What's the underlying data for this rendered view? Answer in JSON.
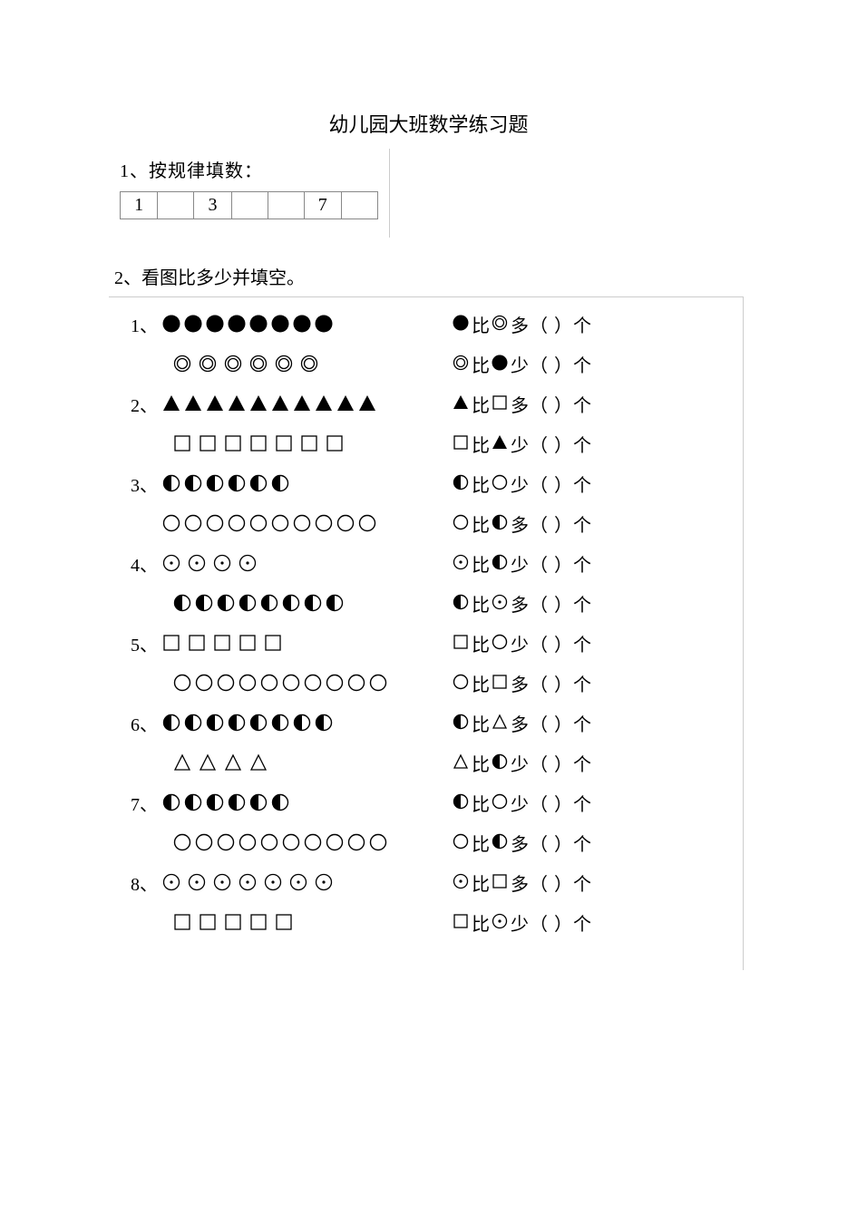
{
  "title": "幼儿园大班数学练习题",
  "q1": {
    "label": "1、按规律填数：",
    "cells": [
      "1",
      "",
      "3",
      "",
      "",
      "7",
      ""
    ]
  },
  "q2": {
    "label": "2、看图比多少并填空。",
    "problems": [
      {
        "num": "1、",
        "rowA": {
          "shape": "filled-circle",
          "count": 8,
          "gap": "tight"
        },
        "rowB": {
          "shape": "double-circle",
          "count": 6,
          "gap": "wide",
          "indent": true
        },
        "stmtA": {
          "s1": "filled-circle",
          "mid": "比",
          "s2": "double-circle",
          "tail": "多（ ）个"
        },
        "stmtB": {
          "s1": "double-circle",
          "mid": "比",
          "s2": "filled-circle",
          "tail": "少（ ）个"
        }
      },
      {
        "num": "2、",
        "rowA": {
          "shape": "filled-triangle",
          "count": 10,
          "gap": "tight"
        },
        "rowB": {
          "shape": "empty-square",
          "count": 7,
          "gap": "wide",
          "indent": true
        },
        "stmtA": {
          "s1": "filled-triangle",
          "mid": "比",
          "s2": "empty-square",
          "tail": "多（ ）个"
        },
        "stmtB": {
          "s1": "empty-square",
          "mid": "比",
          "s2": "filled-triangle",
          "tail": "少（ ）个"
        }
      },
      {
        "num": "3、",
        "rowA": {
          "shape": "half-circle",
          "count": 6,
          "gap": "tight"
        },
        "rowB": {
          "shape": "empty-circle",
          "count": 10,
          "gap": "tight"
        },
        "stmtA": {
          "s1": "half-circle",
          "mid": "比",
          "s2": "empty-circle",
          "tail": "少（ ）个"
        },
        "stmtB": {
          "s1": "empty-circle",
          "mid": "比",
          "s2": "half-circle",
          "tail": "多（ ）个"
        }
      },
      {
        "num": "4、",
        "rowA": {
          "shape": "dot-circle",
          "count": 4,
          "gap": "wide"
        },
        "rowB": {
          "shape": "half-circle",
          "count": 8,
          "gap": "tight",
          "indent": true
        },
        "stmtA": {
          "s1": "dot-circle",
          "mid": "比",
          "s2": "half-circle",
          "tail": "少（ ）个"
        },
        "stmtB": {
          "s1": "half-circle",
          "mid": "比",
          "s2": "dot-circle",
          "tail": "多（ ）个"
        }
      },
      {
        "num": "5、",
        "rowA": {
          "shape": "empty-square",
          "count": 5,
          "gap": "wide"
        },
        "rowB": {
          "shape": "empty-circle",
          "count": 10,
          "gap": "tight",
          "indent": true
        },
        "stmtA": {
          "s1": "empty-square",
          "mid": "比",
          "s2": "empty-circle",
          "tail": "少（ ）个"
        },
        "stmtB": {
          "s1": "empty-circle",
          "mid": "比",
          "s2": "empty-square",
          "tail": "多（ ）个"
        }
      },
      {
        "num": "6、",
        "rowA": {
          "shape": "half-circle",
          "count": 8,
          "gap": "tight"
        },
        "rowB": {
          "shape": "empty-triangle",
          "count": 4,
          "gap": "wide",
          "indent": true
        },
        "stmtA": {
          "s1": "half-circle",
          "mid": "比",
          "s2": "empty-triangle",
          "tail": "多（ ）个"
        },
        "stmtB": {
          "s1": "empty-triangle",
          "mid": "比",
          "s2": "half-circle",
          "tail": "少（ ）个"
        }
      },
      {
        "num": "7、",
        "rowA": {
          "shape": "half-circle",
          "count": 6,
          "gap": "tight"
        },
        "rowB": {
          "shape": "empty-circle",
          "count": 10,
          "gap": "tight",
          "indent": true
        },
        "stmtA": {
          "s1": "half-circle",
          "mid": "比",
          "s2": "empty-circle",
          "tail": "少（ ）个"
        },
        "stmtB": {
          "s1": "empty-circle",
          "mid": "比",
          "s2": "half-circle",
          "tail": "多（ ）个"
        }
      },
      {
        "num": "8、",
        "rowA": {
          "shape": "dot-circle",
          "count": 7,
          "gap": "wide"
        },
        "rowB": {
          "shape": "empty-square",
          "count": 5,
          "gap": "wide",
          "indent": true
        },
        "stmtA": {
          "s1": "dot-circle",
          "mid": "比",
          "s2": "empty-square",
          "tail": "多（ ）个"
        },
        "stmtB": {
          "s1": "empty-square",
          "mid": "比",
          "s2": "dot-circle",
          "tail": "少（ ）个"
        }
      }
    ]
  },
  "colors": {
    "text": "#000000",
    "border": "#888888",
    "boxBorder": "#cccccc",
    "bg": "#ffffff"
  }
}
